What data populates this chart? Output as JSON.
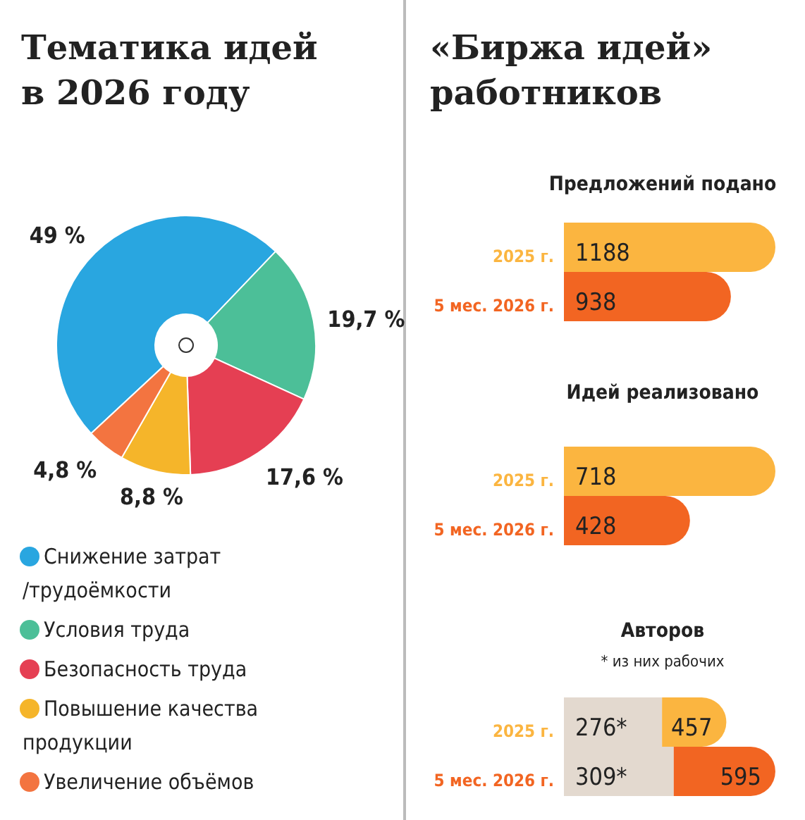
{
  "chart_data": [
    {
      "type": "donut",
      "title": "Тематика идей\nв 2026 году",
      "categories": [
        "Снижение затрат /трудоёмкости",
        "Условия труда",
        "Безопасность труда",
        "Повышение качества продукции",
        "Увеличение объёмов"
      ],
      "values": [
        49,
        19.7,
        17.6,
        8.8,
        4.8
      ],
      "colors": [
        "#29a6e0",
        "#4cbf98",
        "#e53f53",
        "#f5b52a",
        "#f37440"
      ],
      "value_labels": [
        "49 %",
        "19,7 %",
        "17,6 %",
        "8,8 %",
        "4,8 %"
      ],
      "legend": "bottom"
    },
    {
      "type": "bar",
      "orientation": "horizontal",
      "title": "«Биржа идей»\nработников",
      "subtitle": "Предложений подано",
      "categories": [
        "2025 г.",
        "5 мес. 2026 г."
      ],
      "series": [
        {
          "values": [
            1188,
            938
          ],
          "colors": [
            "#fbb540",
            "#f26522"
          ]
        }
      ],
      "data_labels": true
    },
    {
      "type": "bar",
      "orientation": "horizontal",
      "subtitle": "Идей реализовано",
      "categories": [
        "2025 г.",
        "5 мес. 2026 г."
      ],
      "series": [
        {
          "values": [
            718,
            428
          ],
          "colors": [
            "#fbb540",
            "#f26522"
          ]
        }
      ],
      "data_labels": true
    },
    {
      "type": "bar",
      "orientation": "horizontal",
      "subtitle": "Авторов",
      "annotations": [
        "* из них рабочих"
      ],
      "categories": [
        "2025 г.",
        "5 мес. 2026 г."
      ],
      "stacked": true,
      "totals": [
        "457",
        "595"
      ],
      "series": [
        {
          "values": [
            276,
            309
          ],
          "colors": [
            "#e3d9cf",
            "#e3d9cf"
          ],
          "value_labels": [
            "276*",
            "309*"
          ]
        },
        {
          "values": [
            181,
            286
          ],
          "colors": [
            "#fbb540",
            "#f26522"
          ]
        }
      ]
    }
  ]
}
